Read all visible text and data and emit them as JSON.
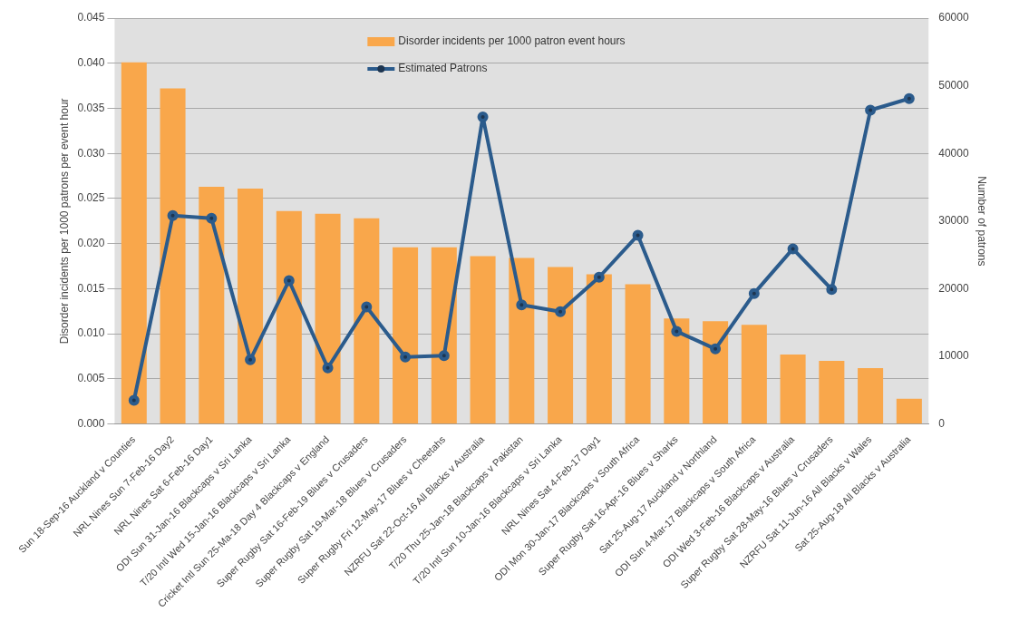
{
  "chart_data": {
    "type": "bar",
    "ylabel": "Disorder incidents per 1000 patrons per event hour",
    "y2label": "Number of patrons",
    "categories": [
      "Sun 18-Sep-16 Auckland v Counties",
      "NRL Nines Sun 7-Feb-16 Day2",
      "NRL Nines Sat 6-Feb-16 Day1",
      "ODI Sun 31-Jan-16 Blackcaps v Sri Lanka",
      "T/20 Intl Wed 15-Jan-16 Blackcaps v Sri Lanka",
      "Cricket Intl Sun 25-Ma-18 Day 4 Blackcaps v England",
      "Super Rugby Sat 16-Feb-19 Blues v Crusaders",
      "Super Rugby Sat 19-Mar-18 Blues v Crusaders",
      "Super Rugby Fri 12-May-17 Blues v Cheetahs",
      "NZRFU Sat 22-Oct-16 All Blacks v Australia",
      "T/20 Thu 25-Jan-18 Blackcaps v Pakistan",
      "T/20 Intl Sun 10-Jan-16 Blackcaps v Sri Lanka",
      "NRL Nines Sat 4-Feb-17 Day1",
      "ODI Mon 30-Jan-17 Blackcaps v South Africa",
      "Super Rugby Sat 16-Apr-16 Blues v Sharks",
      "Sat 25-Aug-17 Auckland v Northland",
      "ODI Sun 4-Mar-17 Blackcaps v South Africa",
      "ODI Wed 3-Feb-16 Blackcaps v Australia",
      "Super Rugby Sat 28-May-16 Blues v Crusaders",
      "NZRFU Sat 11-Jun-16 All Blacks v Wales",
      "Sat 25-Aug-18 All Blacks v Australia"
    ],
    "series": [
      {
        "name": "Disorder incidents per 1000 patron event hours",
        "color": "#f9a74b",
        "values": [
          0.0401,
          0.0372,
          0.0263,
          0.0261,
          0.0236,
          0.0233,
          0.0228,
          0.0196,
          0.0196,
          0.0186,
          0.0184,
          0.0174,
          0.0166,
          0.0155,
          0.0117,
          0.0114,
          0.011,
          0.0077,
          0.007,
          0.0062,
          0.0028
        ]
      },
      {
        "name": "Estimated Patrons",
        "type": "line",
        "axis": "y2",
        "color": "#2b5b8c",
        "values": [
          3500,
          30800,
          30400,
          9500,
          21200,
          8300,
          17300,
          9900,
          10100,
          45400,
          17600,
          16600,
          21700,
          27900,
          13700,
          11100,
          19300,
          25900,
          19900,
          46400,
          48100
        ]
      }
    ],
    "ylim": [
      0,
      0.045
    ],
    "yticks": [
      {
        "value": 0,
        "label": "0.000"
      },
      {
        "value": 0.005,
        "label": "0.005"
      },
      {
        "value": 0.01,
        "label": "0.010"
      },
      {
        "value": 0.015,
        "label": "0.015"
      },
      {
        "value": 0.02,
        "label": "0.020"
      },
      {
        "value": 0.025,
        "label": "0.025"
      },
      {
        "value": 0.03,
        "label": "0.030"
      },
      {
        "value": 0.035,
        "label": "0.035"
      },
      {
        "value": 0.04,
        "label": "0.040"
      },
      {
        "value": 0.045,
        "label": "0.045"
      }
    ],
    "y2lim": [
      0,
      60000
    ],
    "y2ticks": [
      0,
      10000,
      20000,
      30000,
      40000,
      50000,
      60000
    ],
    "grid": "y",
    "legend": "top",
    "marker": "circle",
    "line_style": "solid"
  }
}
